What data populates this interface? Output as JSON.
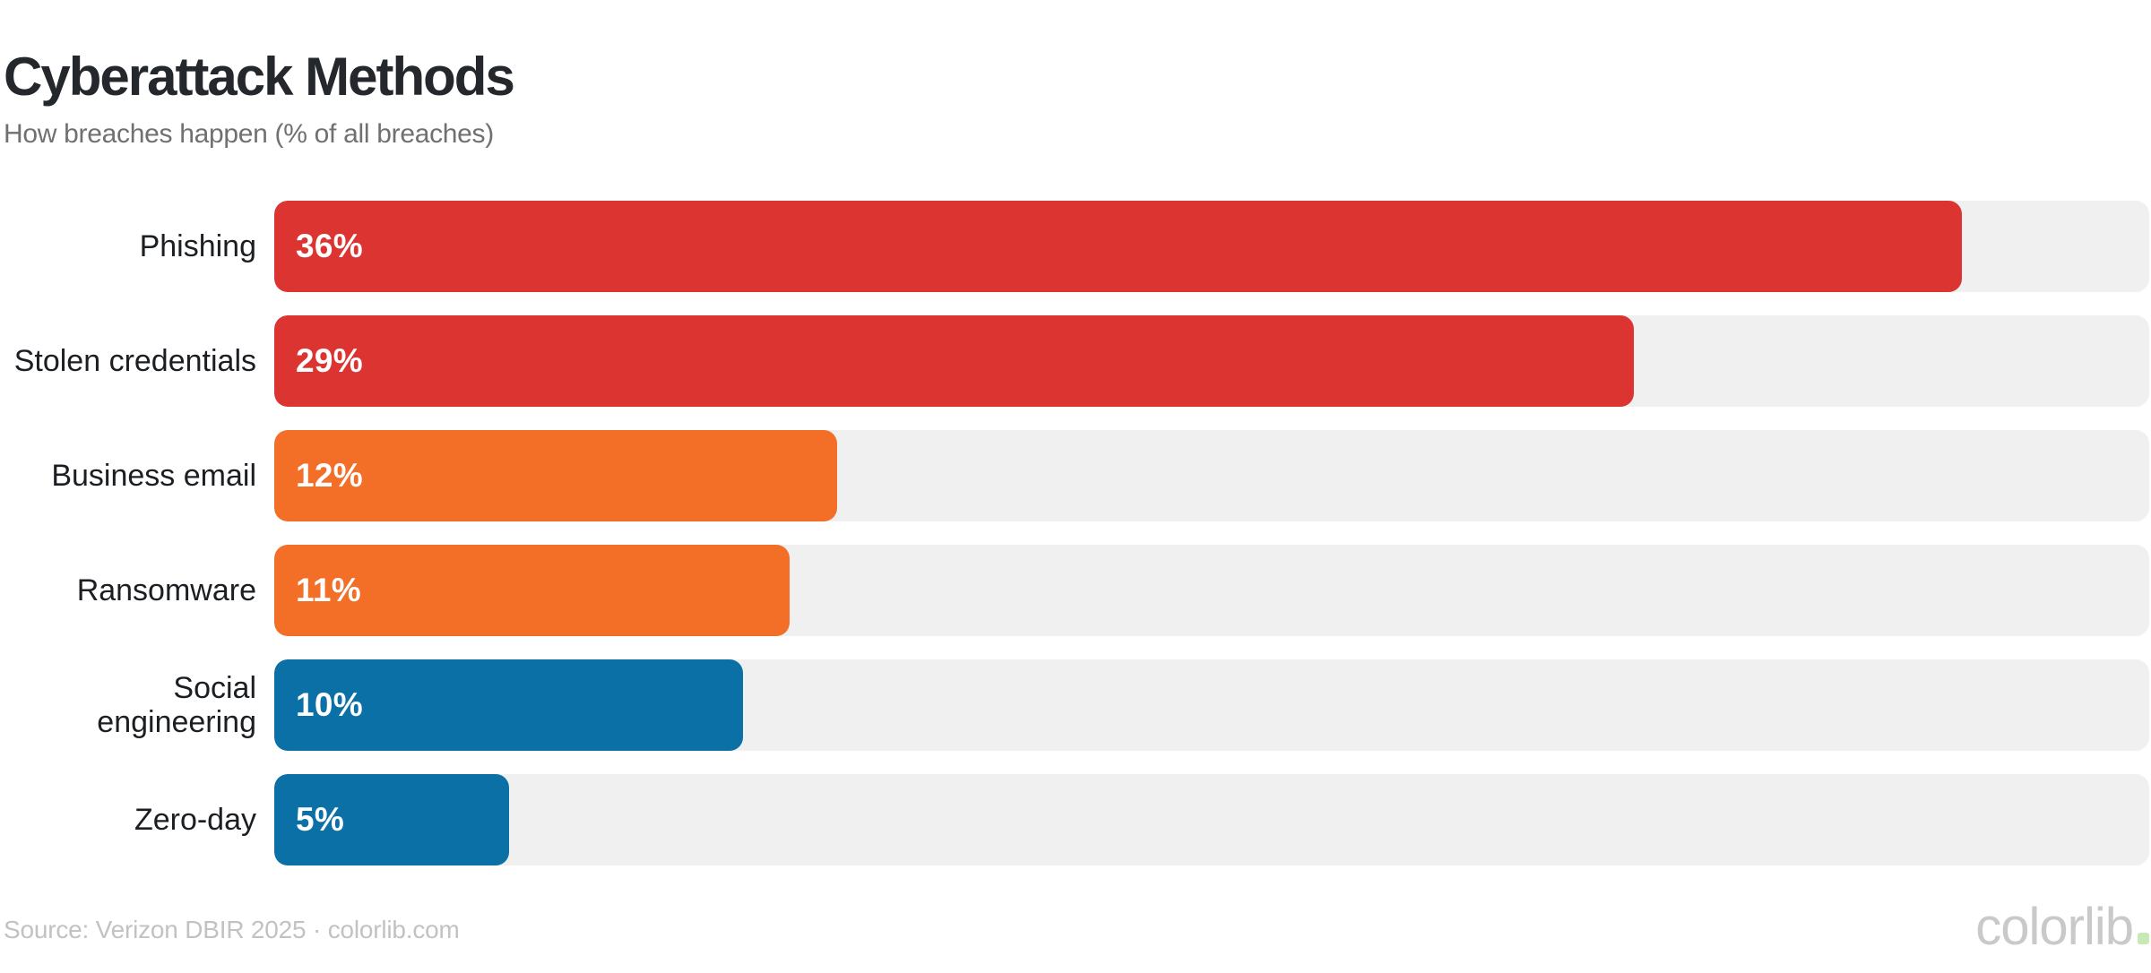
{
  "header": {
    "title": "Cyberattack Methods",
    "subtitle": "How breaches happen (% of all breaches)"
  },
  "chart_data": {
    "type": "bar",
    "orientation": "horizontal",
    "title": "Cyberattack Methods",
    "subtitle": "How breaches happen (% of all breaches)",
    "xlabel": "",
    "ylabel": "",
    "xlim": [
      0,
      40
    ],
    "grid": false,
    "legend": false,
    "categories": [
      "Phishing",
      "Stolen credentials",
      "Business email",
      "Ransomware",
      "Social engineering",
      "Zero-day"
    ],
    "values": [
      36,
      29,
      12,
      11,
      10,
      5
    ],
    "bars": [
      {
        "label": "Phishing",
        "label_display": "Phishing",
        "value": 36,
        "value_label": "36%",
        "color": "#db3431"
      },
      {
        "label": "Stolen credentials",
        "label_display": "Stolen credentials",
        "value": 29,
        "value_label": "29%",
        "color": "#db3431"
      },
      {
        "label": "Business email",
        "label_display": "Business email",
        "value": 12,
        "value_label": "12%",
        "color": "#f36e27"
      },
      {
        "label": "Ransomware",
        "label_display": "Ransomware",
        "value": 11,
        "value_label": "11%",
        "color": "#f36e27"
      },
      {
        "label": "Social engineering",
        "label_display": "Social\nengineering",
        "value": 10,
        "value_label": "10%",
        "color": "#0a70a6"
      },
      {
        "label": "Zero-day",
        "label_display": "Zero-day",
        "value": 5,
        "value_label": "5%",
        "color": "#0a70a6"
      }
    ],
    "track_color": "#f0f0f0"
  },
  "footer": {
    "source": "Source: Verizon DBIR 2025 · colorlib.com",
    "logo_text": "colorlib",
    "logo_dot_color": "#c9e9b4"
  }
}
